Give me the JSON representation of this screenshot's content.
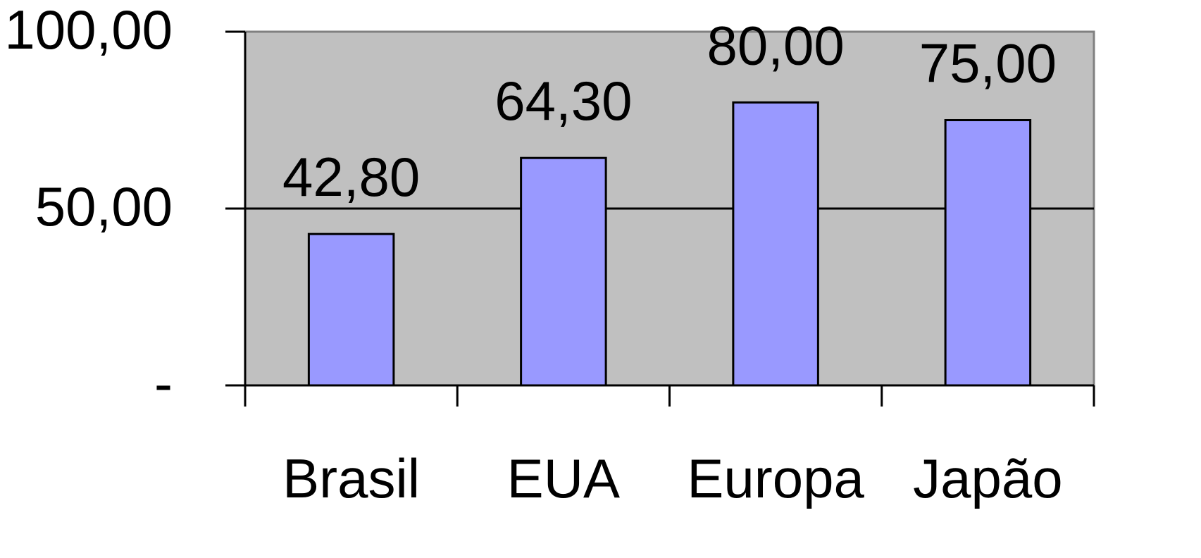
{
  "chart_data": {
    "type": "bar",
    "categories": [
      "Brasil",
      "EUA",
      "Europa",
      "Japão"
    ],
    "values": [
      42.8,
      64.3,
      80.0,
      75.0
    ],
    "value_labels": [
      "42,80",
      "64,30",
      "80,00",
      "75,00"
    ],
    "ylim": [
      0,
      100
    ],
    "yticks": [
      {
        "value": 0,
        "label": "-"
      },
      {
        "value": 50,
        "label": "50,00"
      },
      {
        "value": 100,
        "label": "100,00"
      }
    ],
    "grid": true,
    "legend": "none",
    "colors": {
      "plot_background": "#c0c0c0",
      "bar_fill": "#9999ff",
      "bar_stroke": "#000000",
      "gridline": "#000000",
      "plot_border": "#808080"
    }
  }
}
